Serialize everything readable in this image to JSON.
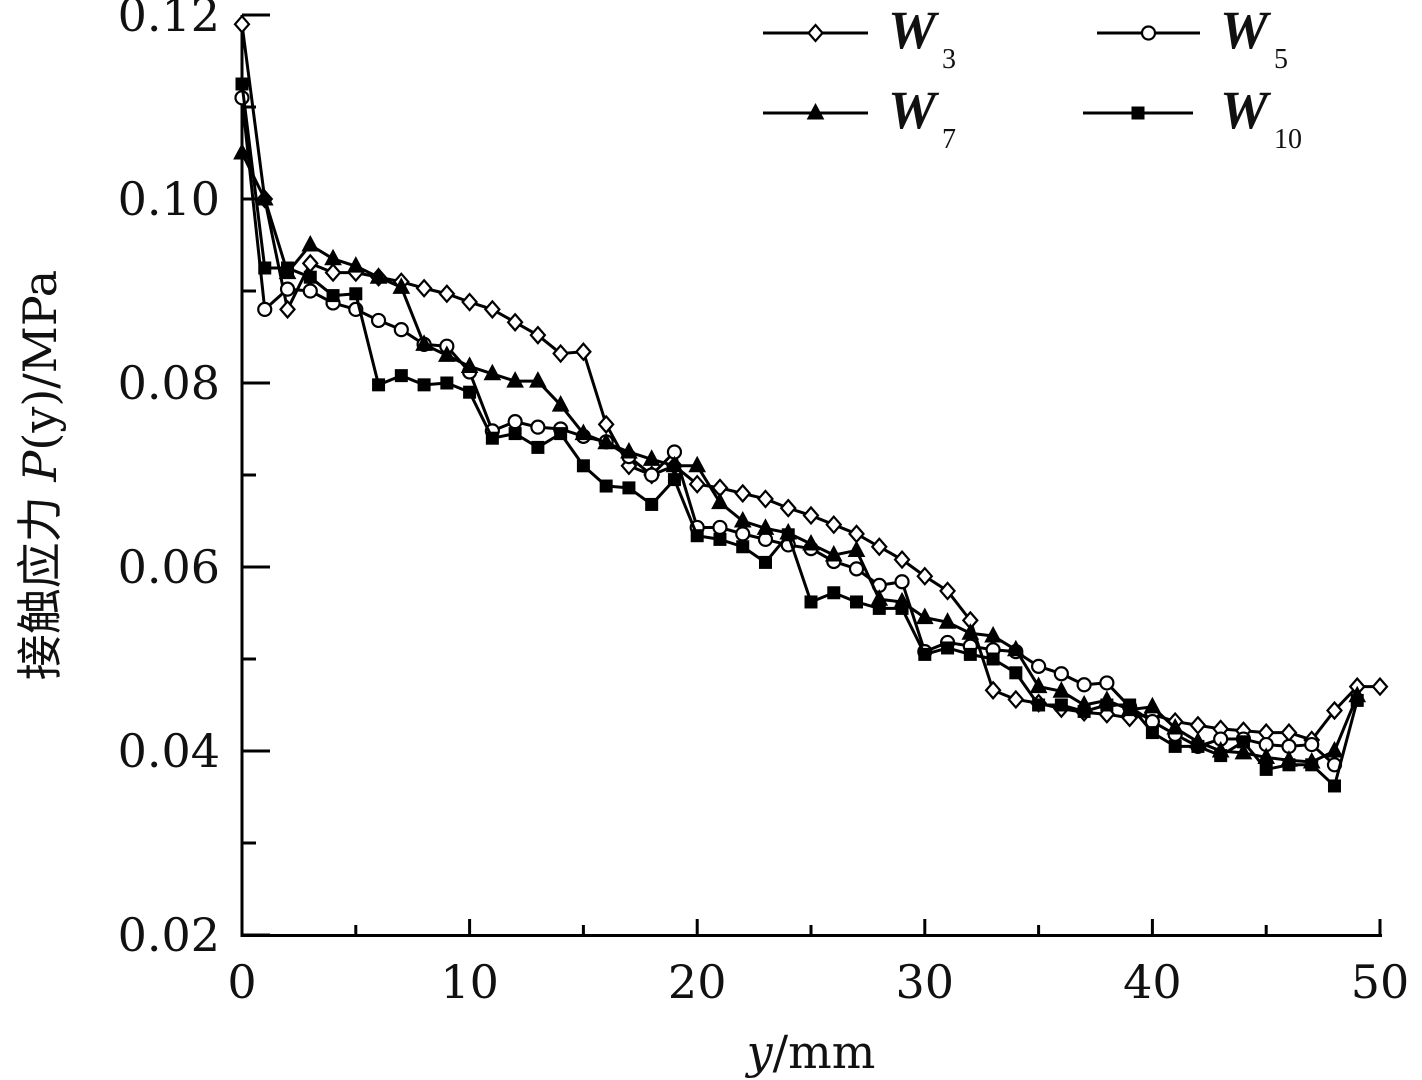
{
  "chart_data": {
    "type": "line",
    "xlabel": {
      "var": "y",
      "unit": "/mm"
    },
    "ylabel": {
      "prefix": "接触应力 ",
      "var": "P",
      "suffix": "(y)/MPa"
    },
    "xlim": [
      0,
      50
    ],
    "ylim": [
      0.02,
      0.12
    ],
    "xticks": [
      "0",
      "10",
      "20",
      "30",
      "40",
      "50"
    ],
    "yticks": [
      "0.02",
      "0.04",
      "0.06",
      "0.08",
      "0.10",
      "0.12"
    ],
    "grid": false,
    "legend_position": "top-right",
    "series": [
      {
        "name": "W",
        "subscript": "3",
        "marker": "diamond-open",
        "x": [
          0,
          1,
          2,
          3,
          4,
          5,
          6,
          7,
          8,
          9,
          10,
          11,
          12,
          13,
          14,
          15,
          16,
          17,
          18,
          19,
          20,
          21,
          22,
          23,
          24,
          25,
          26,
          27,
          28,
          29,
          30,
          31,
          32,
          33,
          34,
          35,
          36,
          37,
          38,
          39,
          40,
          41,
          42,
          43,
          44,
          45,
          46,
          47,
          48,
          49,
          50
        ],
        "values": [
          0.119,
          0.1,
          0.088,
          0.093,
          0.092,
          0.092,
          0.0915,
          0.091,
          0.0903,
          0.0897,
          0.0888,
          0.088,
          0.0866,
          0.0852,
          0.0832,
          0.0834,
          0.0755,
          0.071,
          0.07,
          0.071,
          0.069,
          0.0686,
          0.068,
          0.0674,
          0.0664,
          0.0656,
          0.0646,
          0.0636,
          0.0622,
          0.0608,
          0.059,
          0.0574,
          0.0542,
          0.0466,
          0.0456,
          0.0452,
          0.0446,
          0.0442,
          0.044,
          0.0436,
          0.044,
          0.0432,
          0.0428,
          0.0424,
          0.0422,
          0.042,
          0.042,
          0.0412,
          0.0444,
          0.047,
          0.047
        ]
      },
      {
        "name": "W",
        "subscript": "5",
        "marker": "circle-open",
        "x": [
          0,
          1,
          2,
          3,
          4,
          5,
          6,
          7,
          8,
          9,
          10,
          11,
          12,
          13,
          14,
          15,
          16,
          17,
          18,
          19,
          20,
          21,
          22,
          23,
          24,
          25,
          26,
          27,
          28,
          29,
          30,
          31,
          32,
          33,
          34,
          35,
          36,
          37,
          38,
          39,
          40,
          41,
          42,
          43,
          44,
          45,
          46,
          47,
          48
        ],
        "values": [
          0.111,
          0.088,
          0.0902,
          0.09,
          0.0887,
          0.088,
          0.0868,
          0.0858,
          0.0842,
          0.084,
          0.0812,
          0.0748,
          0.0758,
          0.0752,
          0.075,
          0.0742,
          0.0736,
          0.072,
          0.07,
          0.0725,
          0.0643,
          0.0643,
          0.0636,
          0.063,
          0.0624,
          0.062,
          0.0606,
          0.0598,
          0.058,
          0.0584,
          0.0508,
          0.0518,
          0.0514,
          0.051,
          0.0508,
          0.0492,
          0.0484,
          0.0472,
          0.0474,
          0.0448,
          0.0432,
          0.0418,
          0.0405,
          0.0413,
          0.0413,
          0.0407,
          0.0405,
          0.0407,
          0.0385
        ]
      },
      {
        "name": "W",
        "subscript": "7",
        "marker": "triangle-filled",
        "x": [
          0,
          1,
          2,
          3,
          4,
          5,
          6,
          7,
          8,
          9,
          10,
          11,
          12,
          13,
          14,
          15,
          16,
          17,
          18,
          19,
          20,
          21,
          22,
          23,
          24,
          25,
          26,
          27,
          28,
          29,
          30,
          31,
          32,
          33,
          34,
          35,
          36,
          37,
          38,
          39,
          40,
          41,
          42,
          43,
          44,
          45,
          46,
          47,
          48,
          49
        ],
        "values": [
          0.105,
          0.1,
          0.092,
          0.095,
          0.0935,
          0.0927,
          0.0915,
          0.0904,
          0.0842,
          0.083,
          0.0818,
          0.081,
          0.0802,
          0.0802,
          0.0776,
          0.0745,
          0.0735,
          0.0725,
          0.0717,
          0.071,
          0.071,
          0.067,
          0.065,
          0.0642,
          0.0637,
          0.0625,
          0.0613,
          0.0618,
          0.0565,
          0.0562,
          0.0545,
          0.054,
          0.0528,
          0.0525,
          0.051,
          0.047,
          0.0465,
          0.045,
          0.0455,
          0.0445,
          0.0448,
          0.0425,
          0.041,
          0.04,
          0.0398,
          0.0393,
          0.039,
          0.0388,
          0.04,
          0.046
        ]
      },
      {
        "name": "W",
        "subscript": "10",
        "marker": "square-filled",
        "x": [
          0,
          1,
          2,
          3,
          4,
          5,
          6,
          7,
          8,
          9,
          10,
          11,
          12,
          13,
          14,
          15,
          16,
          17,
          18,
          19,
          20,
          21,
          22,
          23,
          24,
          25,
          26,
          27,
          28,
          29,
          30,
          31,
          32,
          33,
          34,
          35,
          36,
          37,
          38,
          39,
          40,
          41,
          42,
          43,
          44,
          45,
          46,
          47,
          48,
          49
        ],
        "values": [
          0.1125,
          0.0925,
          0.0925,
          0.0915,
          0.0895,
          0.0897,
          0.0798,
          0.0808,
          0.0798,
          0.08,
          0.079,
          0.074,
          0.0745,
          0.073,
          0.0745,
          0.071,
          0.0688,
          0.0686,
          0.0668,
          0.0695,
          0.0634,
          0.063,
          0.0622,
          0.0605,
          0.0635,
          0.0562,
          0.0572,
          0.0562,
          0.0555,
          0.0555,
          0.0505,
          0.0512,
          0.0505,
          0.05,
          0.0485,
          0.045,
          0.045,
          0.0443,
          0.045,
          0.045,
          0.042,
          0.0405,
          0.0405,
          0.0395,
          0.041,
          0.038,
          0.0385,
          0.0385,
          0.0362,
          0.0455
        ]
      }
    ]
  }
}
